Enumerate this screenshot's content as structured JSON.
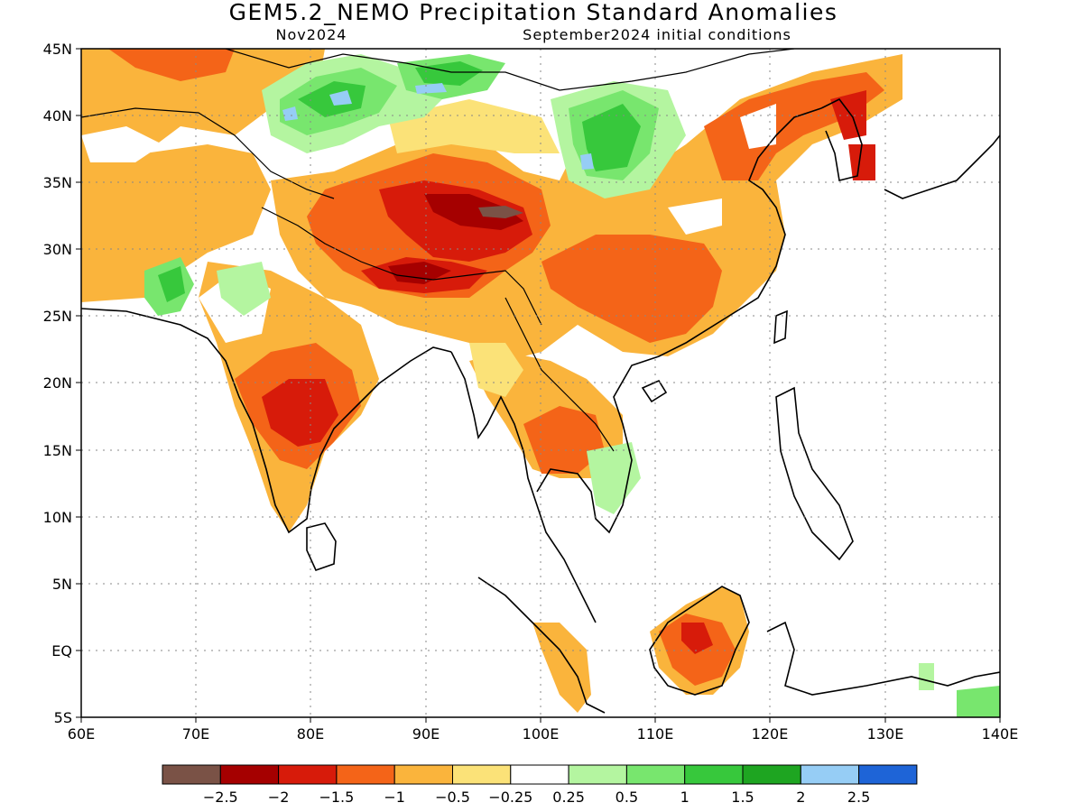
{
  "title": "GEM5.2_NEMO Precipitation Standard Anomalies",
  "subtitle_left": "Nov2024",
  "subtitle_right": "September2024 initial conditions",
  "map": {
    "lon_range": [
      60,
      140
    ],
    "lat_range": [
      -5,
      45
    ],
    "lon_ticks": [
      {
        "value": 60,
        "label": "60E"
      },
      {
        "value": 70,
        "label": "70E"
      },
      {
        "value": 80,
        "label": "80E"
      },
      {
        "value": 90,
        "label": "90E"
      },
      {
        "value": 100,
        "label": "100E"
      },
      {
        "value": 110,
        "label": "110E"
      },
      {
        "value": 120,
        "label": "120E"
      },
      {
        "value": 130,
        "label": "130E"
      },
      {
        "value": 140,
        "label": "140E"
      }
    ],
    "lat_ticks": [
      {
        "value": 45,
        "label": "45N"
      },
      {
        "value": 40,
        "label": "40N"
      },
      {
        "value": 35,
        "label": "35N"
      },
      {
        "value": 30,
        "label": "30N"
      },
      {
        "value": 25,
        "label": "25N"
      },
      {
        "value": 20,
        "label": "20N"
      },
      {
        "value": 15,
        "label": "15N"
      },
      {
        "value": 10,
        "label": "10N"
      },
      {
        "value": 5,
        "label": "5N"
      },
      {
        "value": 0,
        "label": "EQ"
      },
      {
        "value": -5,
        "label": "5S"
      }
    ],
    "grid": "dotted"
  },
  "colorbar": {
    "colors": [
      "#7a5246",
      "#a50000",
      "#d71b0a",
      "#f46418",
      "#fab43c",
      "#fbe278",
      "#ffffff",
      "#b4f5a0",
      "#78e66e",
      "#37c83c",
      "#1ea521",
      "#96cdf5",
      "#1e64d7"
    ],
    "labels": [
      "−2.5",
      "−2",
      "−1.5",
      "−1",
      "−0.5",
      "−0.25",
      "0.25",
      "0.5",
      "1",
      "1.5",
      "2",
      "2.5"
    ]
  }
}
